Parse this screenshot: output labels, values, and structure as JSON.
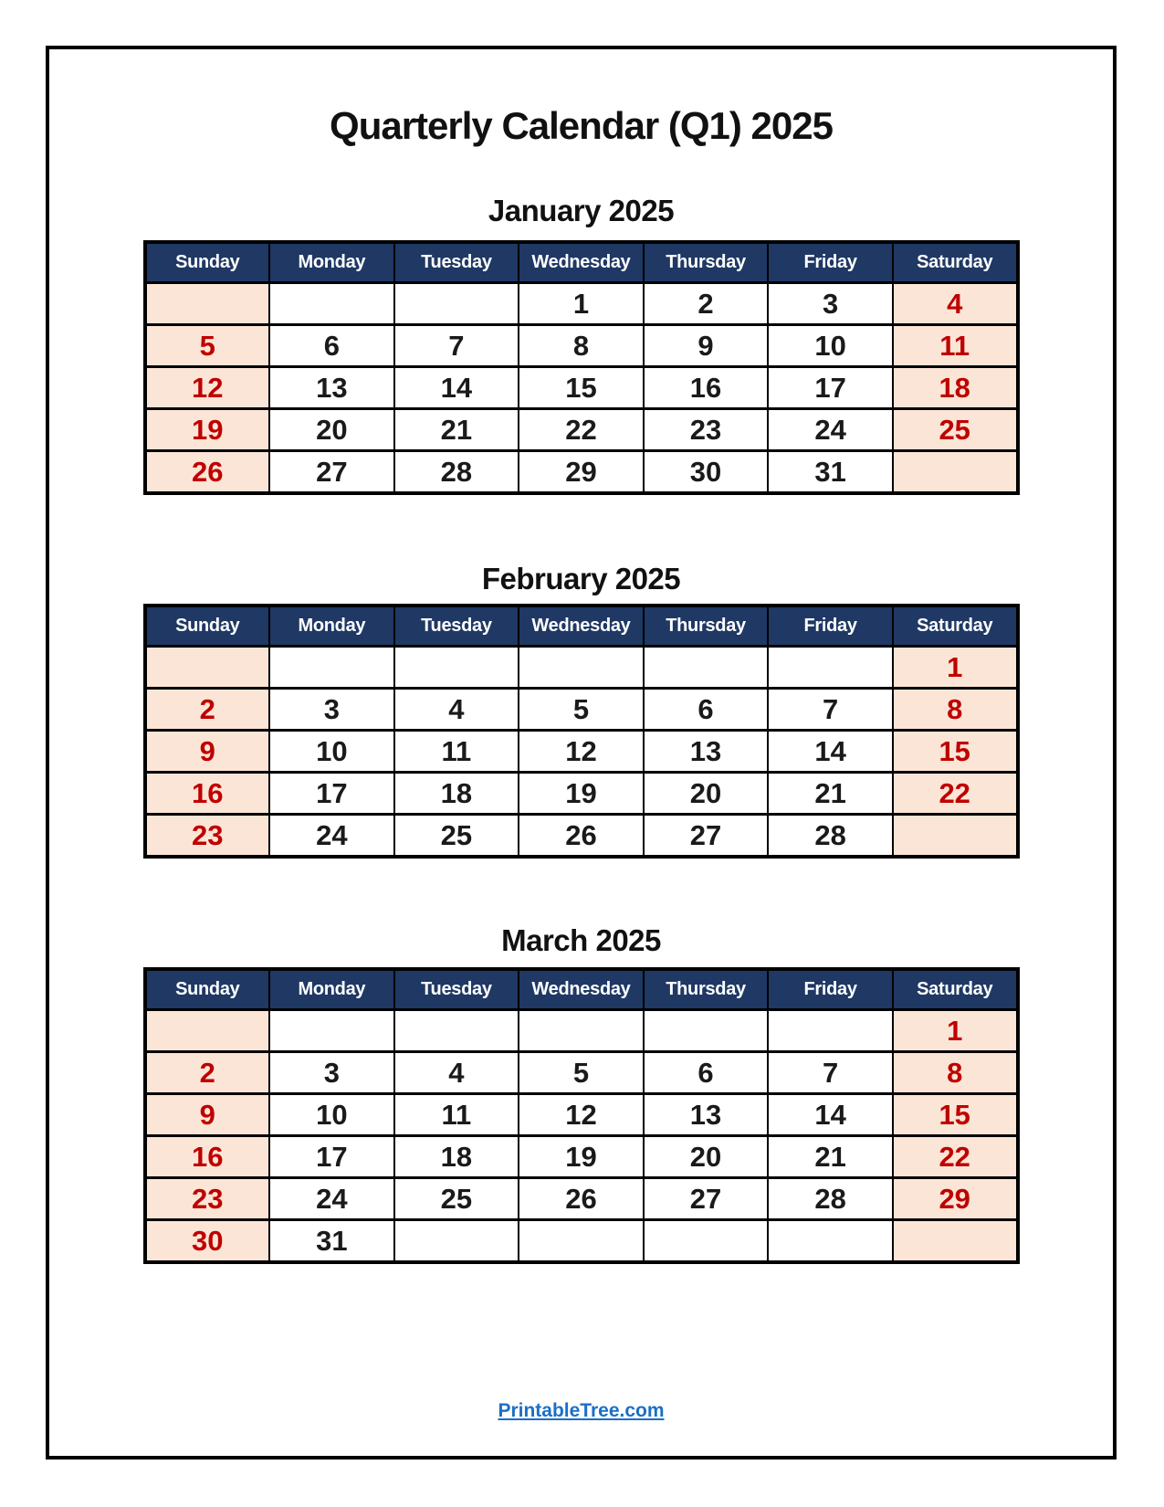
{
  "page": {
    "title": "Quarterly Calendar (Q1) 2025",
    "footer_link": "PrintableTree.com"
  },
  "colors": {
    "header_bg": "#1f3864",
    "header_text": "#ffffff",
    "weekend_bg": "#fbe5d6",
    "weekend_text": "#c00000",
    "weekday_text": "#1a1a1a",
    "border": "#000000",
    "link": "#1b6fc7"
  },
  "day_headers": [
    "Sunday",
    "Monday",
    "Tuesday",
    "Wednesday",
    "Thursday",
    "Friday",
    "Saturday"
  ],
  "months": [
    {
      "name": "January 2025",
      "weeks": [
        [
          "",
          "",
          "",
          "1",
          "2",
          "3",
          "4"
        ],
        [
          "5",
          "6",
          "7",
          "8",
          "9",
          "10",
          "11"
        ],
        [
          "12",
          "13",
          "14",
          "15",
          "16",
          "17",
          "18"
        ],
        [
          "19",
          "20",
          "21",
          "22",
          "23",
          "24",
          "25"
        ],
        [
          "26",
          "27",
          "28",
          "29",
          "30",
          "31",
          ""
        ]
      ]
    },
    {
      "name": "February 2025",
      "weeks": [
        [
          "",
          "",
          "",
          "",
          "",
          "",
          "1"
        ],
        [
          "2",
          "3",
          "4",
          "5",
          "6",
          "7",
          "8"
        ],
        [
          "9",
          "10",
          "11",
          "12",
          "13",
          "14",
          "15"
        ],
        [
          "16",
          "17",
          "18",
          "19",
          "20",
          "21",
          "22"
        ],
        [
          "23",
          "24",
          "25",
          "26",
          "27",
          "28",
          ""
        ]
      ]
    },
    {
      "name": "March 2025",
      "weeks": [
        [
          "",
          "",
          "",
          "",
          "",
          "",
          "1"
        ],
        [
          "2",
          "3",
          "4",
          "5",
          "6",
          "7",
          "8"
        ],
        [
          "9",
          "10",
          "11",
          "12",
          "13",
          "14",
          "15"
        ],
        [
          "16",
          "17",
          "18",
          "19",
          "20",
          "21",
          "22"
        ],
        [
          "23",
          "24",
          "25",
          "26",
          "27",
          "28",
          "29"
        ],
        [
          "30",
          "31",
          "",
          "",
          "",
          "",
          ""
        ]
      ]
    }
  ]
}
